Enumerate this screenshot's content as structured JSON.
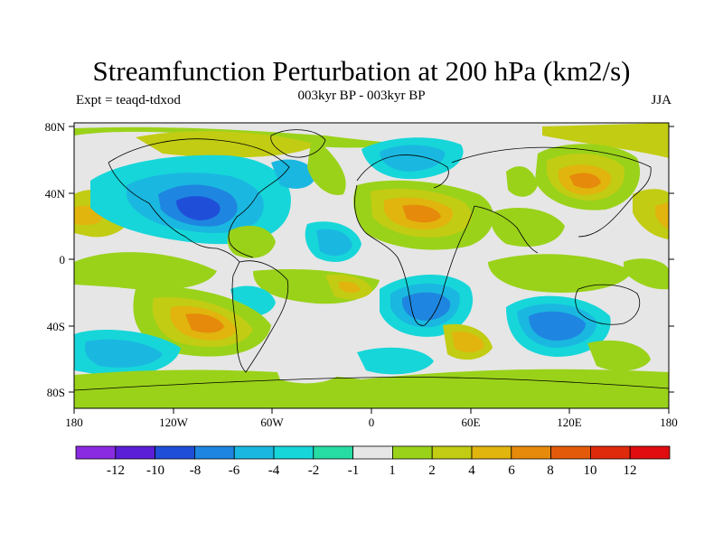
{
  "title": "Streamfunction Perturbation at 200 hPa (km2/s)",
  "expt_label": "Expt = teaqd-tdxod",
  "period_label": "003kyr BP - 003kyr BP",
  "season_label": "JJA",
  "axes": {
    "lat_ticks": [
      "80N",
      "40N",
      "0",
      "40S",
      "80S"
    ],
    "lon_ticks": [
      "180",
      "120W",
      "60W",
      "0",
      "60E",
      "120E",
      "180"
    ]
  },
  "colorbar": {
    "colors": [
      "#8a2be2",
      "#5a1fd6",
      "#1f4fd8",
      "#1e86e0",
      "#1ab8e0",
      "#16d6d9",
      "#26dca2",
      "#e6e6e6",
      "#9ad21a",
      "#c2cc12",
      "#e1b40e",
      "#e68a0b",
      "#e25a0a",
      "#e02a0c",
      "#e00c10"
    ],
    "labels": [
      "-12",
      "-10",
      "-8",
      "-6",
      "-4",
      "-2",
      "-1",
      "1",
      "2",
      "4",
      "6",
      "8",
      "10",
      "12"
    ]
  },
  "chart_data": {
    "type": "heatmap",
    "title": "Streamfunction Perturbation at 200 hPa (km2/s)",
    "subtitle": "003kyr BP - 003kyr BP",
    "left_string": "Expt = teaqd-tdxod",
    "right_string": "JJA",
    "x_range": [
      -180,
      180
    ],
    "y_range": [
      -90,
      90
    ],
    "features": [
      {
        "name": "north-america-low",
        "lon": -105,
        "lat": 38,
        "value": -8
      },
      {
        "name": "north-atlantic-low",
        "lon": -95,
        "lat": 55,
        "value": -4
      },
      {
        "name": "arctic-low",
        "lon": 15,
        "lat": 62,
        "value": -4
      },
      {
        "name": "north-africa-high",
        "lon": 35,
        "lat": 28,
        "value": 6
      },
      {
        "name": "east-asia-high",
        "lon": 125,
        "lat": 42,
        "value": 6
      },
      {
        "name": "pacific-high",
        "lon": -170,
        "lat": 25,
        "value": 4
      },
      {
        "name": "south-america-low",
        "lon": -75,
        "lat": -22,
        "value": -4
      },
      {
        "name": "southern-africa-low",
        "lon": 25,
        "lat": -28,
        "value": -6
      },
      {
        "name": "indian-ocean-low",
        "lon": 110,
        "lat": -38,
        "value": -6
      },
      {
        "name": "south-pacific-high",
        "lon": -105,
        "lat": -38,
        "value": 6
      },
      {
        "name": "south-pacific-low",
        "lon": -150,
        "lat": -58,
        "value": -4
      },
      {
        "name": "south-atlantic-high",
        "lon": -15,
        "lat": -18,
        "value": 4
      },
      {
        "name": "south-indian-high",
        "lon": 60,
        "lat": -52,
        "value": 6
      }
    ]
  }
}
